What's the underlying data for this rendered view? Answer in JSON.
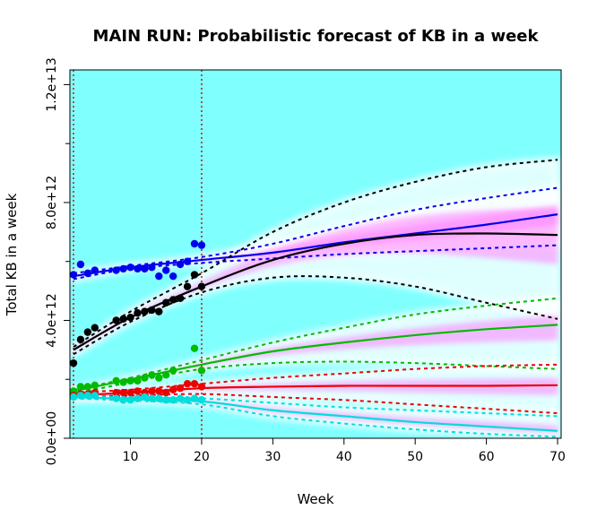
{
  "chart_data": {
    "type": "line",
    "title": "MAIN RUN: Probabilistic forecast of KB in a week",
    "xlabel": "Week",
    "ylabel": "Total KB in a week",
    "xlim": [
      1.5,
      70.5
    ],
    "ylim": [
      0,
      12500000000000.0
    ],
    "x_ticks": [
      10,
      20,
      30,
      40,
      50,
      60,
      70
    ],
    "x_tick_labels": [
      "10",
      "20",
      "30",
      "40",
      "50",
      "60",
      "70"
    ],
    "y_ticks": [
      0,
      4000000000000.0,
      8000000000000.0,
      12000000000000.0
    ],
    "y_tick_labels": [
      "0.0e+00",
      "4.0e+12",
      "8.0e+12",
      "1.2e+13"
    ],
    "background_color": "#80ffff",
    "band_color": "#ff80ff",
    "vlines": [
      {
        "x": 2,
        "color": "#cc0000",
        "style": "dotted"
      },
      {
        "x": 20,
        "color": "#cc0000",
        "style": "dotted"
      }
    ],
    "series": [
      {
        "color": "#0000ee",
        "points": {
          "x": [
            2,
            3,
            4,
            5,
            8,
            9,
            10,
            11,
            12,
            13,
            14,
            15,
            16,
            17,
            18,
            19,
            20
          ],
          "y": [
            5550000000000.0,
            5900000000000.0,
            5600000000000.0,
            5700000000000.0,
            5700000000000.0,
            5750000000000.0,
            5800000000000.0,
            5750000000000.0,
            5750000000000.0,
            5800000000000.0,
            5500000000000.0,
            5700000000000.0,
            5500000000000.0,
            5900000000000.0,
            6000000000000.0,
            6600000000000.0,
            6550000000000.0
          ]
        },
        "fit": {
          "x": [
            2,
            10,
            20,
            30,
            40,
            50,
            60,
            70
          ],
          "y": [
            5500000000000.0,
            5800000000000.0,
            6050000000000.0,
            6300000000000.0,
            6650000000000.0,
            6950000000000.0,
            7250000000000.0,
            7600000000000.0
          ]
        },
        "upper": {
          "x": [
            2,
            10,
            20,
            30,
            40,
            50,
            60,
            70
          ],
          "y": [
            5600000000000.0,
            5850000000000.0,
            6150000000000.0,
            6600000000000.0,
            7200000000000.0,
            7750000000000.0,
            8150000000000.0,
            8500000000000.0
          ]
        },
        "lower": {
          "x": [
            2,
            10,
            20,
            30,
            40,
            50,
            60,
            70
          ],
          "y": [
            5400000000000.0,
            5750000000000.0,
            5950000000000.0,
            6100000000000.0,
            6250000000000.0,
            6350000000000.0,
            6450000000000.0,
            6550000000000.0
          ]
        }
      },
      {
        "color": "#000000",
        "points": {
          "x": [
            2,
            3,
            4,
            5,
            8,
            9,
            10,
            11,
            12,
            13,
            14,
            15,
            16,
            17,
            18,
            19,
            20
          ],
          "y": [
            2550000000000.0,
            3350000000000.0,
            3600000000000.0,
            3750000000000.0,
            4000000000000.0,
            4050000000000.0,
            4100000000000.0,
            4250000000000.0,
            4300000000000.0,
            4350000000000.0,
            4300000000000.0,
            4600000000000.0,
            4700000000000.0,
            4750000000000.0,
            5150000000000.0,
            5550000000000.0,
            5150000000000.0
          ]
        },
        "fit": {
          "x": [
            2,
            10,
            20,
            30,
            40,
            50,
            60,
            70
          ],
          "y": [
            3000000000000.0,
            4100000000000.0,
            5150000000000.0,
            6050000000000.0,
            6600000000000.0,
            6900000000000.0,
            6950000000000.0,
            6900000000000.0
          ]
        },
        "upper": {
          "x": [
            2,
            10,
            20,
            30,
            40,
            50,
            60,
            70
          ],
          "y": [
            3100000000000.0,
            4300000000000.0,
            5600000000000.0,
            7000000000000.0,
            8000000000000.0,
            8700000000000.0,
            9200000000000.0,
            9450000000000.0
          ]
        },
        "lower": {
          "x": [
            2,
            10,
            20,
            30,
            40,
            50,
            60,
            70
          ],
          "y": [
            2850000000000.0,
            3950000000000.0,
            4950000000000.0,
            5450000000000.0,
            5450000000000.0,
            5150000000000.0,
            4600000000000.0,
            4050000000000.0
          ]
        }
      },
      {
        "color": "#00bb00",
        "points": {
          "x": [
            2,
            3,
            4,
            5,
            8,
            9,
            10,
            11,
            12,
            13,
            14,
            15,
            16,
            19,
            20
          ],
          "y": [
            1600000000000.0,
            1750000000000.0,
            1750000000000.0,
            1800000000000.0,
            1950000000000.0,
            1900000000000.0,
            1950000000000.0,
            1950000000000.0,
            2050000000000.0,
            2150000000000.0,
            2050000000000.0,
            2150000000000.0,
            2300000000000.0,
            3050000000000.0,
            2300000000000.0
          ]
        },
        "fit": {
          "x": [
            2,
            10,
            20,
            30,
            40,
            50,
            60,
            70
          ],
          "y": [
            1600000000000.0,
            2000000000000.0,
            2500000000000.0,
            2950000000000.0,
            3250000000000.0,
            3500000000000.0,
            3700000000000.0,
            3850000000000.0
          ]
        },
        "upper": {
          "x": [
            2,
            10,
            20,
            30,
            40,
            50,
            60,
            70
          ],
          "y": [
            1650000000000.0,
            2050000000000.0,
            2650000000000.0,
            3250000000000.0,
            3750000000000.0,
            4200000000000.0,
            4500000000000.0,
            4750000000000.0
          ]
        },
        "lower": {
          "x": [
            2,
            10,
            20,
            30,
            40,
            50,
            60,
            70
          ],
          "y": [
            1500000000000.0,
            1900000000000.0,
            2350000000000.0,
            2550000000000.0,
            2600000000000.0,
            2550000000000.0,
            2450000000000.0,
            2350000000000.0
          ]
        }
      },
      {
        "color": "#ee0000",
        "points": {
          "x": [
            2,
            3,
            4,
            5,
            8,
            9,
            10,
            11,
            12,
            13,
            14,
            15,
            16,
            17,
            18,
            19,
            20
          ],
          "y": [
            1450000000000.0,
            1500000000000.0,
            1500000000000.0,
            1550000000000.0,
            1550000000000.0,
            1550000000000.0,
            1550000000000.0,
            1600000000000.0,
            1550000000000.0,
            1600000000000.0,
            1600000000000.0,
            1550000000000.0,
            1650000000000.0,
            1700000000000.0,
            1850000000000.0,
            1850000000000.0,
            1750000000000.0
          ]
        },
        "fit": {
          "x": [
            2,
            10,
            20,
            30,
            40,
            50,
            60,
            70
          ],
          "y": [
            1450000000000.0,
            1550000000000.0,
            1700000000000.0,
            1750000000000.0,
            1780000000000.0,
            1780000000000.0,
            1780000000000.0,
            1800000000000.0
          ]
        },
        "upper": {
          "x": [
            2,
            10,
            20,
            30,
            40,
            50,
            60,
            70
          ],
          "y": [
            1550000000000.0,
            1650000000000.0,
            1850000000000.0,
            2050000000000.0,
            2200000000000.0,
            2350000000000.0,
            2450000000000.0,
            2500000000000.0
          ]
        },
        "lower": {
          "x": [
            2,
            10,
            20,
            30,
            40,
            50,
            60,
            70
          ],
          "y": [
            1400000000000.0,
            1450000000000.0,
            1500000000000.0,
            1400000000000.0,
            1300000000000.0,
            1150000000000.0,
            1000000000000.0,
            850000000000.0
          ]
        }
      },
      {
        "color": "#00dddd",
        "points": {
          "x": [
            2,
            3,
            4,
            5,
            8,
            9,
            10,
            11,
            12,
            13,
            14,
            15,
            16,
            17,
            18,
            19,
            20
          ],
          "y": [
            1400000000000.0,
            1450000000000.0,
            1450000000000.0,
            1450000000000.0,
            1350000000000.0,
            1300000000000.0,
            1300000000000.0,
            1350000000000.0,
            1400000000000.0,
            1350000000000.0,
            1350000000000.0,
            1300000000000.0,
            1300000000000.0,
            1350000000000.0,
            1300000000000.0,
            1350000000000.0,
            1300000000000.0
          ]
        },
        "fit": {
          "x": [
            2,
            10,
            20,
            30,
            40,
            50,
            60,
            70
          ],
          "y": [
            1400000000000.0,
            1330000000000.0,
            1250000000000.0,
            950000000000.0,
            750000000000.0,
            550000000000.0,
            400000000000.0,
            250000000000.0
          ]
        },
        "upper": {
          "x": [
            2,
            10,
            20,
            30,
            40,
            50,
            60,
            70
          ],
          "y": [
            1450000000000.0,
            1380000000000.0,
            1350000000000.0,
            1200000000000.0,
            1050000000000.0,
            950000000000.0,
            850000000000.0,
            750000000000.0
          ]
        },
        "lower": {
          "x": [
            2,
            10,
            20,
            30,
            40,
            50,
            60,
            70
          ],
          "y": [
            1350000000000.0,
            1280000000000.0,
            1150000000000.0,
            750000000000.0,
            500000000000.0,
            300000000000.0,
            150000000000.0,
            50000000000.0
          ]
        }
      }
    ]
  }
}
